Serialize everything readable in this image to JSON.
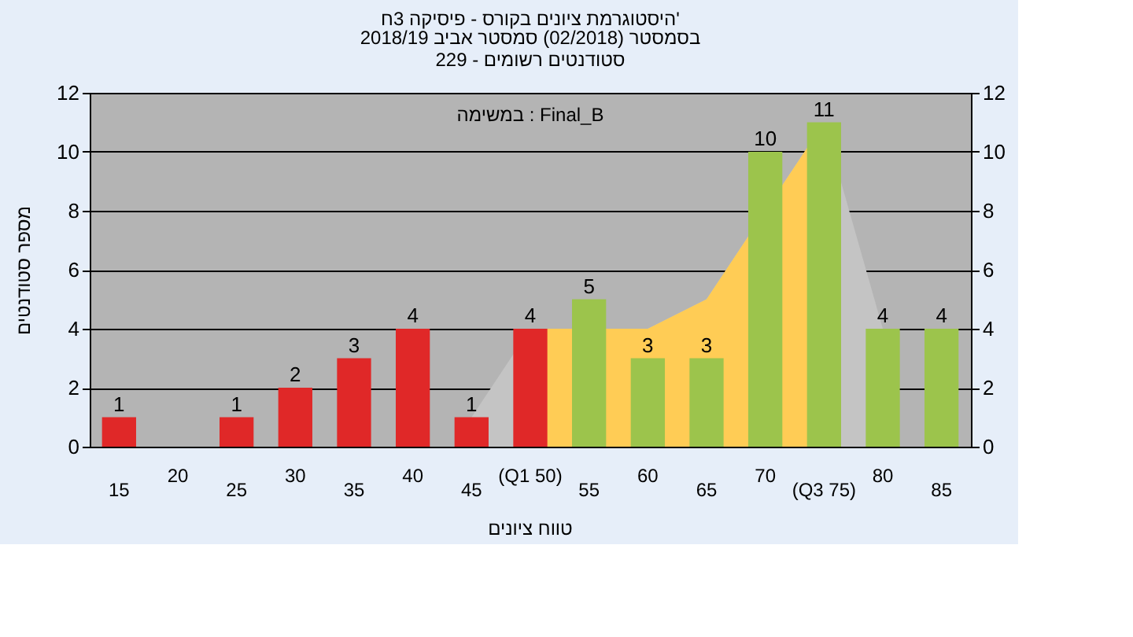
{
  "chart_data": {
    "type": "bar",
    "title": "היסטוגרמת ציונים בקורס - פיסיקה 3ח'",
    "subtitle": "בסמסטר (02/2018) סמסטר אביב 2018/19\nסטודנטים רשומים - 229",
    "xlabel": "טווח ציונים",
    "ylabel": "מספר סטודנטים",
    "annotations": [
      "במשימה : Final_B"
    ],
    "categories": [
      "15",
      "20",
      "25",
      "30",
      "35",
      "40",
      "45",
      "(Q1 50)",
      "55",
      "60",
      "65",
      "70",
      "(Q3 75)",
      "80",
      "85"
    ],
    "series": [
      {
        "type": "area",
        "color": "#c4c4c4",
        "values": [
          null,
          null,
          null,
          null,
          null,
          null,
          1,
          4,
          null,
          4,
          5,
          null,
          11,
          4,
          null
        ]
      },
      {
        "type": "area",
        "color": "#ffcc55",
        "values": [
          null,
          null,
          null,
          null,
          null,
          null,
          null,
          4,
          null,
          4,
          5,
          null,
          11,
          null,
          null
        ]
      },
      {
        "colors": [
          "#e02828",
          "#e02828",
          "#e02828",
          "#e02828",
          "#e02828",
          "#e02828",
          "#e02828",
          "#e02828",
          "#9cc44c",
          "#9cc44c",
          "#9cc44c",
          "#9cc44c",
          "#9cc44c",
          "#9cc44c",
          "#9cc44c"
        ],
        "values": [
          1,
          0,
          1,
          2,
          3,
          4,
          1,
          4,
          5,
          3,
          3,
          10,
          11,
          4,
          4
        ],
        "value_labels": [
          "1",
          null,
          "1",
          "2",
          "3",
          "4",
          "1",
          "4",
          "5",
          "3",
          "3",
          "10",
          "11",
          "4",
          "4"
        ]
      }
    ],
    "ylim": [
      0,
      12
    ],
    "yticks": [
      0,
      2,
      4,
      6,
      8,
      10,
      12
    ],
    "y2lim": [
      0,
      12
    ],
    "y2ticks": [
      0,
      2,
      4,
      6,
      8,
      10,
      12
    ],
    "grid": true
  }
}
